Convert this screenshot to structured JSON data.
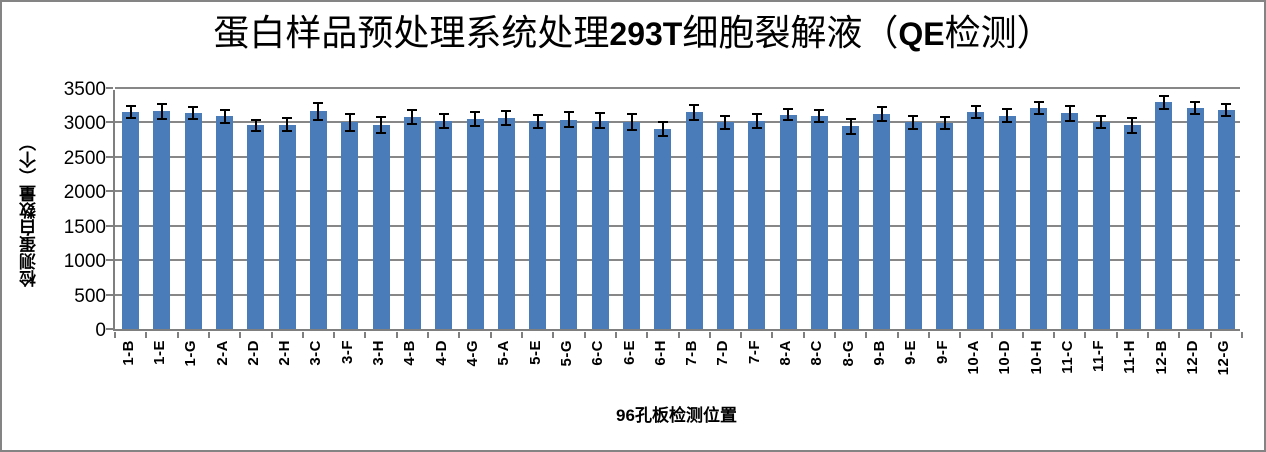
{
  "window": {
    "background": "#ffffff",
    "frame_border_color": "#848484"
  },
  "chart_data": {
    "type": "bar",
    "title": "蛋白样品预处理系统处理293T细胞裂解液（QE检测）",
    "title_parts": [
      {
        "text": "蛋白样品预处理系统处理",
        "style": "cjk"
      },
      {
        "text": "293T",
        "style": "latin"
      },
      {
        "text": "细胞裂解液（",
        "style": "cjk"
      },
      {
        "text": "QE",
        "style": "latin"
      },
      {
        "text": "检测）",
        "style": "cjk"
      }
    ],
    "xlabel": "96孔板检测位置",
    "ylabel": "检测蛋白数量（个）",
    "ylim": [
      0,
      3500
    ],
    "yticks": [
      0,
      500,
      1000,
      1500,
      2000,
      2500,
      3000,
      3500
    ],
    "grid": true,
    "legend": null,
    "categories": [
      "1-B",
      "1-E",
      "1-G",
      "2-A",
      "2-D",
      "2-H",
      "3-C",
      "3-F",
      "3-H",
      "4-B",
      "4-D",
      "4-G",
      "5-A",
      "5-E",
      "5-G",
      "6-C",
      "6-E",
      "6-H",
      "7-B",
      "7-D",
      "7-F",
      "8-A",
      "8-C",
      "8-G",
      "9-B",
      "9-E",
      "9-F",
      "10-A",
      "10-D",
      "10-H",
      "11-C",
      "11-F",
      "11-H",
      "12-B",
      "12-D",
      "12-G"
    ],
    "values": [
      3150,
      3165,
      3140,
      3090,
      2960,
      2970,
      3160,
      3000,
      2960,
      3080,
      3020,
      3050,
      3065,
      3015,
      3040,
      3025,
      3005,
      2905,
      3145,
      3005,
      3020,
      3115,
      3090,
      2945,
      3125,
      3005,
      2995,
      3150,
      3100,
      3210,
      3135,
      3005,
      2960,
      3290,
      3210,
      3185
    ],
    "errors": [
      90,
      110,
      85,
      95,
      80,
      95,
      120,
      125,
      120,
      100,
      105,
      100,
      95,
      95,
      105,
      110,
      115,
      100,
      115,
      95,
      105,
      85,
      90,
      110,
      100,
      95,
      85,
      90,
      95,
      90,
      110,
      90,
      110,
      95,
      85,
      85
    ],
    "bar_color": "#4a7cba",
    "gridline_color": "#878787",
    "axis_color": "#7f7f7f",
    "error_bar_color": "#000000"
  }
}
